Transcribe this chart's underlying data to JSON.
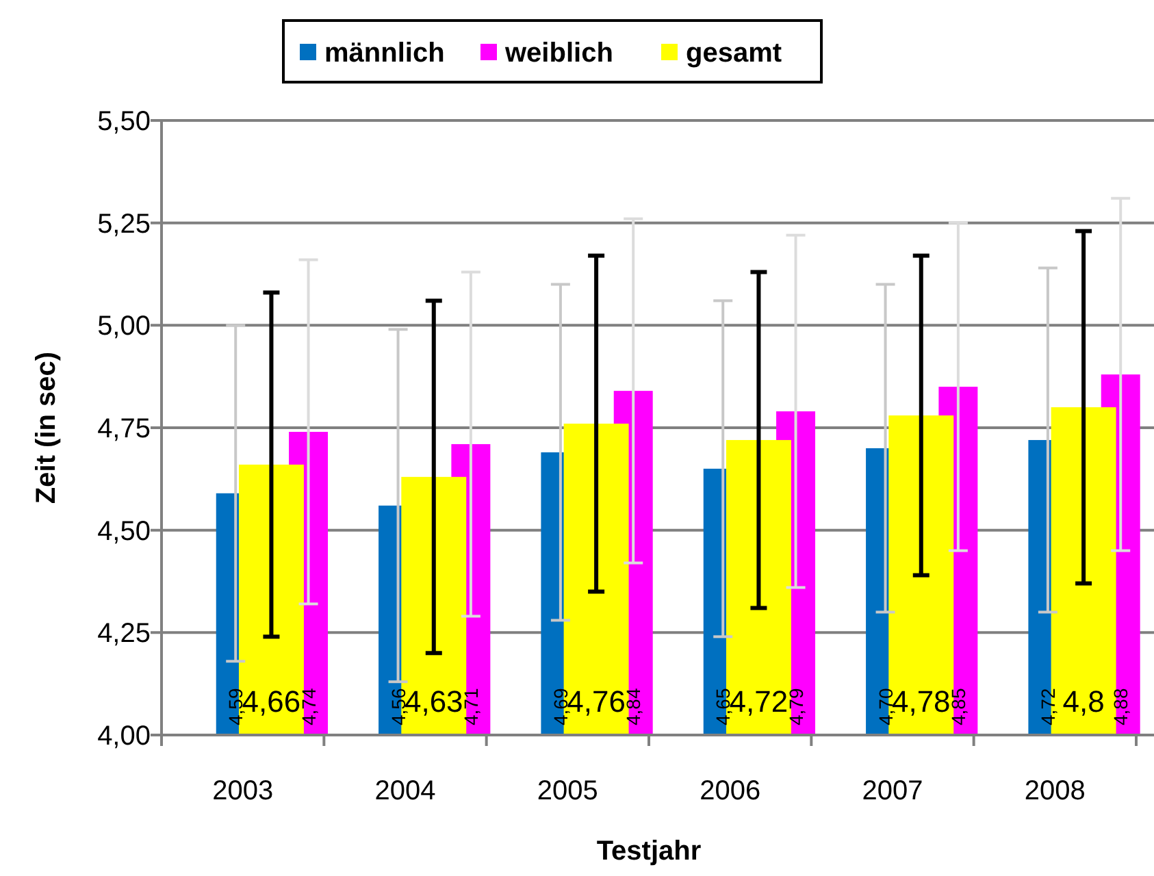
{
  "chart_data": {
    "type": "bar",
    "xlabel": "Testjahr",
    "ylabel": "Zeit (in sec)",
    "categories": [
      "2003",
      "2004",
      "2005",
      "2006",
      "2007",
      "2008"
    ],
    "series": [
      {
        "name": "männlich",
        "color": "#0070c0",
        "values": [
          4.59,
          4.56,
          4.69,
          4.65,
          4.7,
          4.72
        ],
        "errors": [
          0.41,
          0.43,
          0.41,
          0.41,
          0.4,
          0.42
        ],
        "value_labels": [
          "4,59",
          "4,56",
          "4,69",
          "4,65",
          "4,70",
          "4,72"
        ]
      },
      {
        "name": "weiblich",
        "color": "#ff00ff",
        "values": [
          4.74,
          4.71,
          4.84,
          4.79,
          4.85,
          4.88
        ],
        "errors": [
          0.42,
          0.42,
          0.42,
          0.43,
          0.4,
          0.43
        ],
        "value_labels": [
          "4,74",
          "4,71",
          "4,84",
          "4,79",
          "4,85",
          "4,88"
        ]
      },
      {
        "name": "gesamt",
        "color": "#ffff00",
        "values": [
          4.66,
          4.63,
          4.76,
          4.72,
          4.78,
          4.8
        ],
        "errors": [
          0.42,
          0.43,
          0.41,
          0.41,
          0.39,
          0.43
        ],
        "value_labels": [
          "4,66",
          "4,63",
          "4,76",
          "4,72",
          "4,78",
          "4,8"
        ]
      }
    ],
    "ylim": [
      4.0,
      5.5
    ],
    "yticks": [
      {
        "value": 4.0,
        "label": "4,00"
      },
      {
        "value": 4.25,
        "label": "4,25"
      },
      {
        "value": 4.5,
        "label": "4,50"
      },
      {
        "value": 4.75,
        "label": "4,75"
      },
      {
        "value": 5.0,
        "label": "5,00"
      },
      {
        "value": 5.25,
        "label": "5,25"
      },
      {
        "value": 5.5,
        "label": "5,50"
      }
    ],
    "grid": "y",
    "legend": "top"
  }
}
